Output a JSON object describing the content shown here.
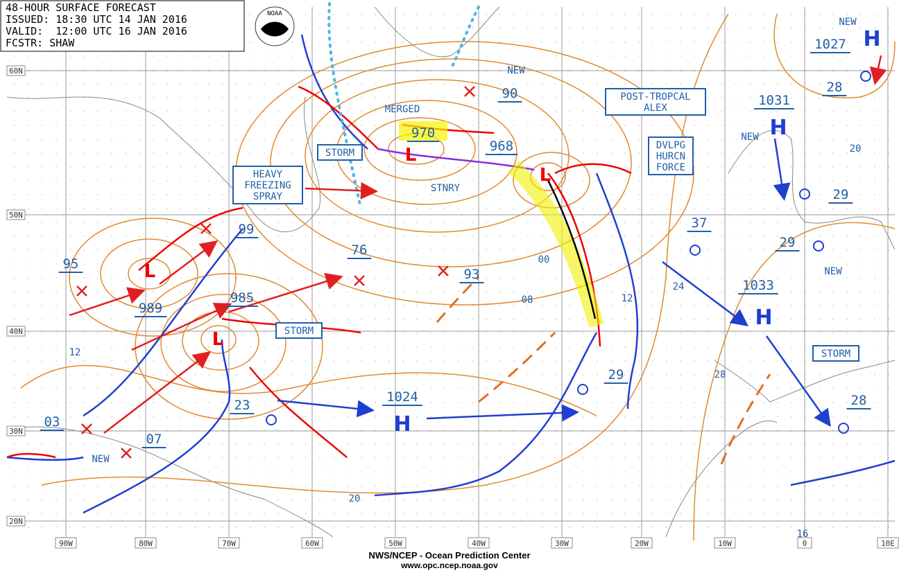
{
  "header": {
    "lines": [
      "48-HOUR SURFACE FORECAST",
      "ISSUED: 18:30 UTC 14 JAN 2016",
      "VALID:  12:00 UTC 16 JAN 2016",
      "FCSTR: SHAW"
    ],
    "logo": "NOAA"
  },
  "latitude_labels": [
    "60N",
    "50N",
    "40N",
    "30N",
    "20N"
  ],
  "longitude_labels": [
    "90W",
    "80W",
    "70W",
    "60W",
    "50W",
    "40W",
    "30W",
    "20W",
    "10W",
    "0",
    "10E"
  ],
  "boxed_labels": [
    [
      "HEAVY",
      "FREEZING",
      "SPRAY"
    ],
    [
      "STORM"
    ],
    [
      "STORM"
    ],
    [
      "POST-TROPCAL",
      "ALEX"
    ],
    [
      "DVLPG",
      "HURCN",
      "FORCE"
    ],
    [
      "STORM"
    ]
  ],
  "pressure_labels": [
    "970",
    "968",
    "95",
    "99",
    "76",
    "93",
    "989",
    "985",
    "90",
    "1027",
    "1031",
    "37",
    "29",
    "29",
    "1033",
    "28",
    "29",
    "23",
    "1024",
    "03",
    "07",
    "28"
  ],
  "plain_labels": [
    "NEW",
    "MERGED",
    "STNRY",
    "NEW",
    "NEW",
    "NEW",
    "NEW",
    "00",
    "08",
    "12",
    "24",
    "20",
    "28",
    "20",
    "12",
    "16"
  ],
  "centers": [
    "H",
    "H",
    "H",
    "H",
    "L",
    "L",
    "L",
    "L"
  ],
  "footer": [
    "NWS/NCEP - Ocean Prediction Center",
    "www.opc.ncep.noaa.gov"
  ]
}
